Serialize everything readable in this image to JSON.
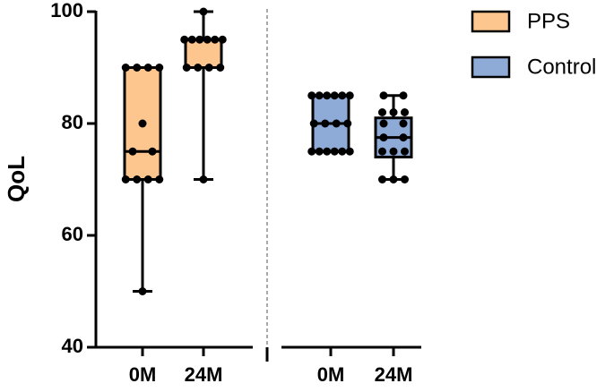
{
  "chart_data": {
    "type": "box",
    "ylabel": "QoL",
    "ylim": [
      40,
      100
    ],
    "yticks": [
      40,
      60,
      80,
      100
    ],
    "legend": "upper right",
    "series": [
      {
        "name": "PPS",
        "color": "#fdc68f",
        "categories": [
          "0M",
          "24M"
        ],
        "boxes": [
          {
            "min": 50,
            "q1": 70,
            "median": 75,
            "q3": 90,
            "max": 90,
            "points": [
              90,
              90,
              90,
              90,
              80,
              75,
              75,
              70,
              70,
              70,
              70,
              50
            ]
          },
          {
            "min": 70,
            "q1": 90,
            "median": 95,
            "q3": 95,
            "max": 100,
            "points": [
              100,
              95,
              95,
              95,
              95,
              95,
              95,
              90,
              90,
              90,
              90,
              70
            ]
          }
        ]
      },
      {
        "name": "Control",
        "color": "#8eaad6",
        "categories": [
          "0M",
          "24M"
        ],
        "boxes": [
          {
            "min": 75,
            "q1": 75,
            "median": 80,
            "q3": 85,
            "max": 85,
            "points": [
              85,
              85,
              85,
              85,
              85,
              85,
              80,
              80,
              80,
              80,
              75,
              75,
              75,
              75,
              75,
              75
            ]
          },
          {
            "min": 70,
            "q1": 74,
            "median": 77.5,
            "q3": 81,
            "max": 85,
            "points": [
              85,
              85,
              82,
              82,
              82,
              80,
              80,
              77.5,
              77.5,
              75,
              75,
              75,
              70,
              70,
              70
            ]
          }
        ]
      }
    ]
  }
}
